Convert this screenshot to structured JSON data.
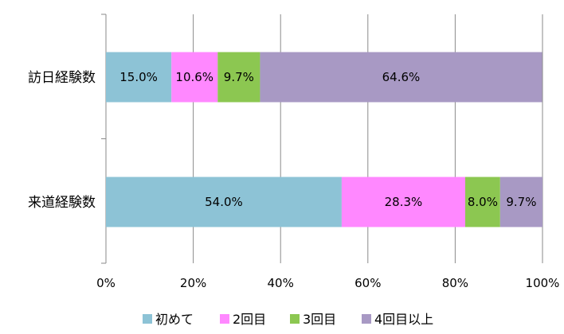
{
  "chart_data": {
    "type": "bar",
    "orientation": "horizontal",
    "stacked": "percent",
    "categories": [
      "訪日経験数",
      "来道経験数"
    ],
    "series": [
      {
        "name": "初めて",
        "values": [
          15.0,
          54.0
        ],
        "color": "#8DC3D6"
      },
      {
        "name": "2回目",
        "values": [
          10.6,
          28.3
        ],
        "color": "#FF88FF"
      },
      {
        "name": "3回目",
        "values": [
          9.7,
          8.0
        ],
        "color": "#8CC751"
      },
      {
        "name": "4回目以上",
        "values": [
          64.6,
          9.7
        ],
        "color": "#A899C4"
      }
    ],
    "data_labels": [
      [
        "15.0%",
        "10.6%",
        "9.7%",
        "64.6%"
      ],
      [
        "54.0%",
        "28.3%",
        "8.0%",
        "9.7%"
      ]
    ],
    "xlim": [
      0,
      100
    ],
    "xticks": [
      "0%",
      "20%",
      "40%",
      "60%",
      "80%",
      "100%"
    ],
    "grid": true,
    "legend_position": "bottom",
    "title": "",
    "xlabel": "",
    "ylabel": ""
  }
}
